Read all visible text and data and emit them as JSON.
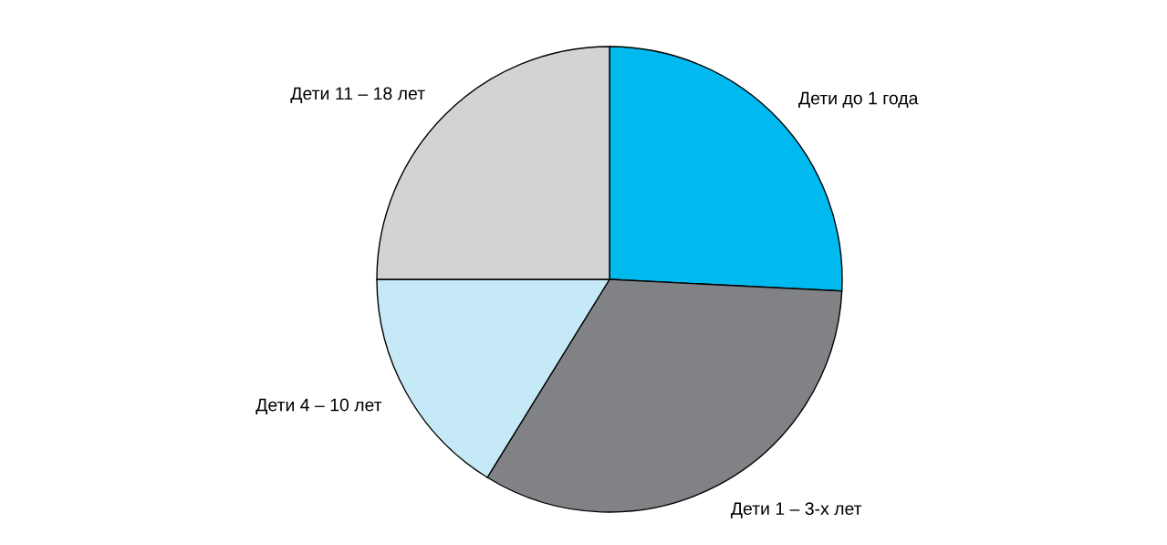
{
  "chart_data": {
    "type": "pie",
    "categories": [
      "Дети до 1 года",
      "Дети 1 – 3-х лет",
      "Дети 4 – 10 лет",
      "Дети 11 – 18 лет"
    ],
    "values": [
      25.8,
      33.0,
      16.2,
      25.0
    ],
    "colors": [
      "#00b9ee",
      "#808285",
      "#c6e9f8",
      "#d1d3d4"
    ]
  }
}
